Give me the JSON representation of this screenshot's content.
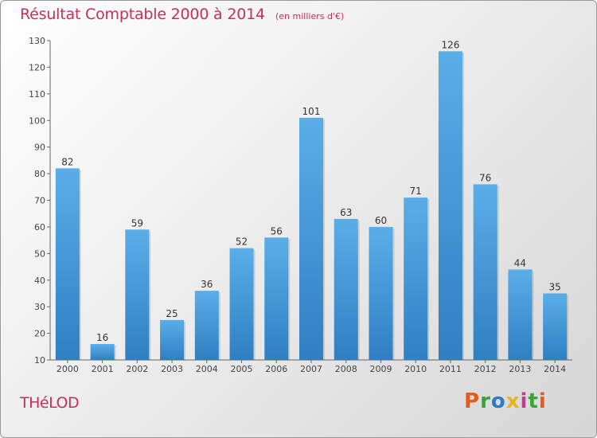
{
  "chart_data": {
    "type": "bar",
    "title": "Résultat Comptable 2000 à 2014",
    "subtitle": "(en milliers d'€)",
    "categories": [
      "2000",
      "2001",
      "2002",
      "2003",
      "2004",
      "2005",
      "2006",
      "2007",
      "2008",
      "2009",
      "2010",
      "2011",
      "2012",
      "2013",
      "2014"
    ],
    "values": [
      82,
      16,
      59,
      25,
      36,
      52,
      56,
      101,
      63,
      60,
      71,
      126,
      76,
      44,
      35
    ],
    "ylim": [
      10,
      130
    ],
    "yticks": [
      10,
      20,
      30,
      40,
      50,
      60,
      70,
      80,
      90,
      100,
      110,
      120,
      130
    ],
    "grid": false,
    "bar_color": "#3d8fd6"
  },
  "commune": "THéLOD",
  "logo": {
    "letters": [
      "P",
      "r",
      "o",
      "x",
      "i",
      "t",
      "i"
    ],
    "colors": [
      "#e85a1b",
      "#3aa335",
      "#2f7ac7",
      "#e8b41b",
      "#c23a8f",
      "#3aa335",
      "#e85a1b"
    ]
  }
}
